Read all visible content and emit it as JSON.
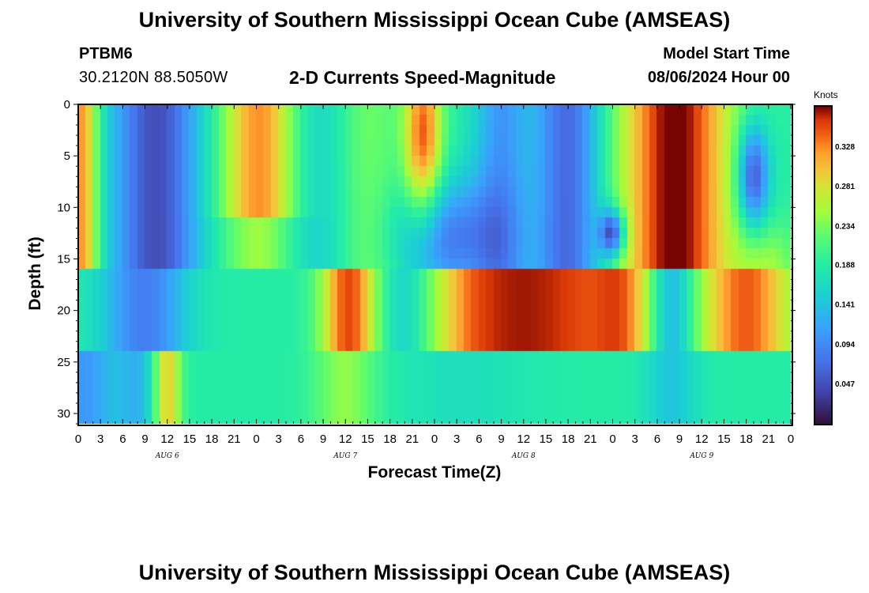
{
  "header": {
    "title": "University of Southern Mississippi Ocean Cube (AMSEAS)",
    "station_id": "PTBM6",
    "station_location": "30.2120N  88.5050W",
    "subtitle": "2-D Currents Speed-Magnitude",
    "model_label": "Model Start Time",
    "model_start": "08/06/2024 Hour 00"
  },
  "footer": {
    "title": "University of Southern Mississippi Ocean Cube (AMSEAS)"
  },
  "colors": {
    "frame": "#000000",
    "background": "#ffffff"
  },
  "chart_data": {
    "type": "heatmap",
    "title": "2-D Currents Speed-Magnitude",
    "xlabel": "Forecast Time(Z)",
    "ylabel": "Depth (ft)",
    "xlim": [
      0,
      96
    ],
    "ylim": [
      31,
      0
    ],
    "x_tick_labels": [
      "0",
      "3",
      "6",
      "9",
      "12",
      "15",
      "18",
      "21",
      "0",
      "3",
      "6",
      "9",
      "12",
      "15",
      "18",
      "21",
      "0",
      "3",
      "6",
      "9",
      "12",
      "15",
      "18",
      "21",
      "0",
      "3",
      "6",
      "9",
      "12",
      "15",
      "18",
      "21",
      "0"
    ],
    "y_ticks": [
      0,
      5,
      10,
      15,
      20,
      25,
      30
    ],
    "y_tick_labels": [
      "0",
      "5",
      "10",
      "15",
      "20",
      "25",
      "30"
    ],
    "day_labels": [
      {
        "label": "AUG 6",
        "hour": 12
      },
      {
        "label": "AUG 7",
        "hour": 36
      },
      {
        "label": "AUG 8",
        "hour": 60
      },
      {
        "label": "AUG 9",
        "hour": 84
      }
    ],
    "colorbar": {
      "title": "Knots",
      "range": [
        0.0,
        0.375
      ],
      "tick_labels": [
        "0.047",
        "0.094",
        "0.141",
        "0.188",
        "0.234",
        "0.281",
        "0.328"
      ],
      "tick_values": [
        0.047,
        0.094,
        0.141,
        0.188,
        0.234,
        0.281,
        0.328
      ]
    },
    "speed_bands": [
      {
        "depth_range": "0-16 ft",
        "time_hours": [
          0,
          2
        ],
        "value": 0.3
      },
      {
        "depth_range": "0-16 ft",
        "time_hours": [
          6,
          16
        ],
        "value": 0.05
      },
      {
        "depth_range": "0-10 ft",
        "time_hours": [
          19,
          30
        ],
        "value": 0.32
      },
      {
        "depth_range": "0-8 ft",
        "time_hours": [
          45,
          48
        ],
        "value": 0.33
      },
      {
        "depth_range": "0-16 ft",
        "time_hours": [
          74,
          86
        ],
        "value": 0.35
      },
      {
        "depth_range": "3-10 ft",
        "time_hours": [
          89,
          92
        ],
        "value": 0.04
      },
      {
        "depth_range": "17-24 ft",
        "time_hours": [
          34,
          39
        ],
        "value": 0.3
      },
      {
        "depth_range": "17-24 ft",
        "time_hours": [
          48,
          76
        ],
        "value": 0.33
      },
      {
        "depth_range": "17-24 ft",
        "time_hours": [
          84,
          96
        ],
        "value": 0.31
      },
      {
        "depth_range": "25-30 ft",
        "time_hours": [
          11,
          13
        ],
        "value": 0.24
      },
      {
        "depth_range": "12-14 ft",
        "time_hours": [
          72,
          73
        ],
        "value": 0.01
      }
    ]
  }
}
